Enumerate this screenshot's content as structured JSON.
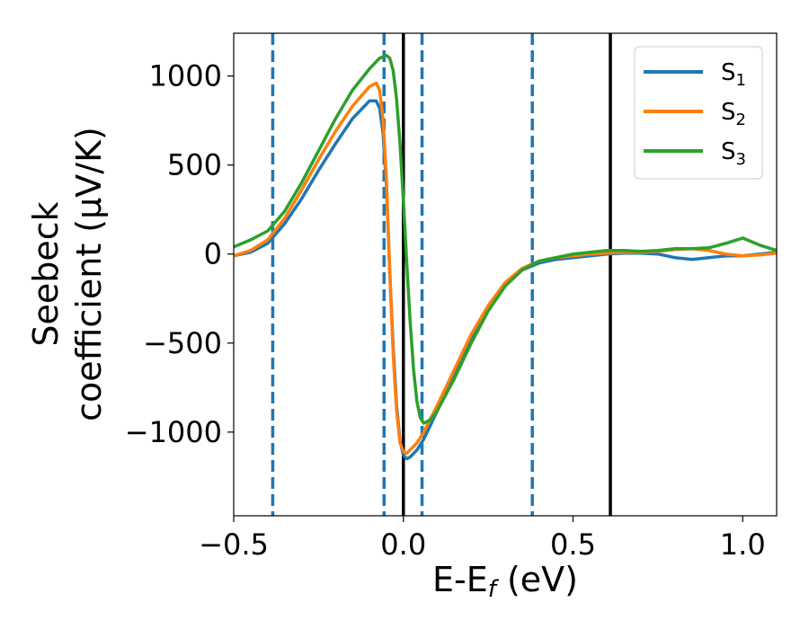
{
  "chart_data": {
    "type": "line",
    "title": "",
    "xlabel": "E-E",
    "xlabel_sub": "f",
    "xlabel_unit": " (eV)",
    "ylabel_line1": "Seebeck",
    "ylabel_line2": "coefficient  (μV/K)",
    "xlim": [
      -0.5,
      1.1
    ],
    "ylim": [
      -1470,
      1240
    ],
    "xticks": [
      -0.5,
      0.0,
      0.5,
      1.0
    ],
    "xtick_labels": [
      "−0.5",
      "0.0",
      "0.5",
      "1.0"
    ],
    "yticks": [
      -1000,
      -500,
      0,
      500,
      1000
    ],
    "ytick_labels": [
      "−1000",
      "−500",
      "0",
      "500",
      "1000"
    ],
    "grid": false,
    "legend_position": "top-right",
    "vlines_dashed": [
      -0.385,
      -0.057,
      0.055,
      0.38
    ],
    "vlines_dashed_color": "#1f77b4",
    "vlines_solid": [
      0.0,
      0.61
    ],
    "vlines_solid_color": "#000000",
    "series": [
      {
        "name": "S",
        "sub": "1",
        "color": "#1f77b4",
        "x": [
          -0.5,
          -0.45,
          -0.4,
          -0.35,
          -0.3,
          -0.25,
          -0.2,
          -0.15,
          -0.1,
          -0.08,
          -0.07,
          -0.06,
          -0.05,
          -0.04,
          -0.03,
          -0.02,
          -0.01,
          0.0,
          0.01,
          0.02,
          0.04,
          0.06,
          0.1,
          0.15,
          0.2,
          0.25,
          0.3,
          0.35,
          0.4,
          0.45,
          0.5,
          0.55,
          0.6,
          0.65,
          0.7,
          0.75,
          0.8,
          0.85,
          0.9,
          0.95,
          1.0,
          1.05,
          1.1
        ],
        "y": [
          -10,
          10,
          60,
          170,
          310,
          470,
          620,
          760,
          860,
          860,
          820,
          680,
          380,
          -100,
          -520,
          -850,
          -1050,
          -1130,
          -1150,
          -1140,
          -1100,
          -1040,
          -880,
          -680,
          -480,
          -310,
          -170,
          -90,
          -50,
          -30,
          -20,
          -10,
          0,
          5,
          5,
          0,
          -20,
          -30,
          -20,
          -10,
          -10,
          0,
          10
        ]
      },
      {
        "name": "S",
        "sub": "2",
        "color": "#ff7f0e",
        "x": [
          -0.5,
          -0.45,
          -0.4,
          -0.35,
          -0.3,
          -0.25,
          -0.2,
          -0.15,
          -0.1,
          -0.08,
          -0.07,
          -0.06,
          -0.05,
          -0.04,
          -0.03,
          -0.02,
          -0.01,
          0.0,
          0.01,
          0.02,
          0.04,
          0.06,
          0.1,
          0.15,
          0.2,
          0.25,
          0.3,
          0.35,
          0.4,
          0.45,
          0.5,
          0.55,
          0.6,
          0.65,
          0.7,
          0.75,
          0.8,
          0.85,
          0.9,
          0.95,
          1.0,
          1.05,
          1.1
        ],
        "y": [
          -10,
          20,
          80,
          200,
          360,
          530,
          690,
          830,
          940,
          960,
          920,
          760,
          420,
          -100,
          -560,
          -880,
          -1060,
          -1110,
          -1120,
          -1100,
          -1060,
          -1000,
          -850,
          -650,
          -450,
          -290,
          -160,
          -80,
          -40,
          -20,
          -10,
          0,
          5,
          10,
          10,
          15,
          25,
          30,
          20,
          0,
          -10,
          -5,
          5
        ]
      },
      {
        "name": "S",
        "sub": "3",
        "color": "#2ca02c",
        "x": [
          -0.5,
          -0.45,
          -0.4,
          -0.35,
          -0.3,
          -0.25,
          -0.2,
          -0.15,
          -0.1,
          -0.07,
          -0.05,
          -0.04,
          -0.03,
          -0.02,
          -0.01,
          0.0,
          0.01,
          0.02,
          0.03,
          0.04,
          0.05,
          0.06,
          0.08,
          0.1,
          0.15,
          0.2,
          0.25,
          0.3,
          0.35,
          0.4,
          0.45,
          0.5,
          0.55,
          0.6,
          0.65,
          0.7,
          0.75,
          0.8,
          0.85,
          0.9,
          0.95,
          1.0,
          1.05,
          1.1
        ],
        "y": [
          40,
          80,
          130,
          240,
          400,
          580,
          760,
          920,
          1040,
          1100,
          1115,
          1100,
          1030,
          870,
          620,
          300,
          -50,
          -380,
          -650,
          -830,
          -920,
          -950,
          -930,
          -880,
          -700,
          -500,
          -320,
          -180,
          -90,
          -40,
          -20,
          0,
          10,
          20,
          20,
          15,
          20,
          30,
          30,
          35,
          60,
          90,
          50,
          20
        ]
      }
    ]
  }
}
